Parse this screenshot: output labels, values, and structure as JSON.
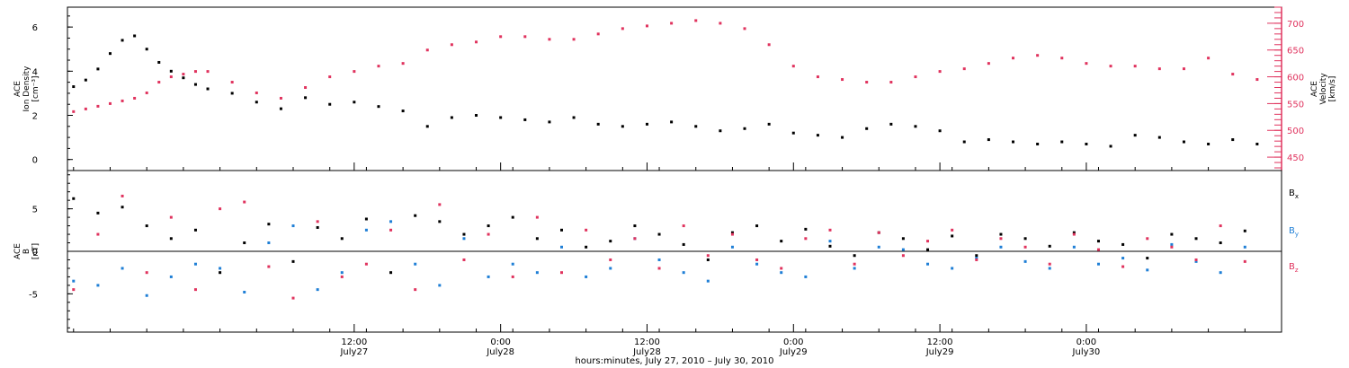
{
  "colors": {
    "axis": "#000000",
    "density": "#000000",
    "velocity": "#e0335e",
    "bx": "#000000",
    "by": "#1f7fd6",
    "bz": "#e0335e"
  },
  "xlabel": "hours:minutes, July 27, 2010 – July 30, 2010",
  "chart_data": [
    {
      "type": "scatter",
      "panel": "top",
      "ylabel_left": [
        "ACE",
        "Ion Density",
        "[cm⁻³]"
      ],
      "ylabel_right": [
        "ACE",
        "Velocity",
        "[km/s]"
      ],
      "x_unit": "hours since July 27, 2010 00:00",
      "xlim": [
        -11.5,
        88
      ],
      "ylim_left": [
        -0.5,
        6.9
      ],
      "ylim_right": [
        425,
        730
      ],
      "yticks_left": [
        "0",
        "2",
        "4",
        "6"
      ],
      "yticks_right": [
        "450",
        "500",
        "550",
        "600",
        "650",
        "700"
      ],
      "series": [
        {
          "axis": "left",
          "color_key": "density",
          "x": [
            -11,
            -10,
            -9,
            -8,
            -7,
            -6,
            -5,
            -4,
            -3,
            -2,
            -1,
            0,
            2,
            4,
            6,
            8,
            10,
            12,
            14,
            16,
            18,
            20,
            22,
            24,
            26,
            28,
            30,
            32,
            34,
            36,
            38,
            40,
            42,
            44,
            46,
            48,
            50,
            52,
            54,
            56,
            58,
            60,
            62,
            64,
            66,
            68,
            70,
            72,
            74,
            76,
            78,
            80,
            82,
            84,
            86
          ],
          "y": [
            3.3,
            3.6,
            4.1,
            4.8,
            5.4,
            5.6,
            5.0,
            4.4,
            4.0,
            3.7,
            3.4,
            3.2,
            3.0,
            2.6,
            2.3,
            2.8,
            2.5,
            2.6,
            2.4,
            2.2,
            1.5,
            1.9,
            2.0,
            1.9,
            1.8,
            1.7,
            1.9,
            1.6,
            1.5,
            1.6,
            1.7,
            1.5,
            1.3,
            1.4,
            1.6,
            1.2,
            1.1,
            1.0,
            1.4,
            1.6,
            1.5,
            1.3,
            0.8,
            0.9,
            0.8,
            0.7,
            0.8,
            0.7,
            0.6,
            1.1,
            1.0,
            0.8,
            0.7,
            0.9,
            0.7
          ]
        },
        {
          "axis": "right",
          "color_key": "velocity",
          "x": [
            -11,
            -10,
            -9,
            -8,
            -7,
            -6,
            -5,
            -4,
            -3,
            -2,
            -1,
            0,
            2,
            4,
            6,
            8,
            10,
            12,
            14,
            16,
            18,
            20,
            22,
            24,
            26,
            28,
            30,
            32,
            34,
            36,
            38,
            40,
            42,
            44,
            46,
            48,
            50,
            52,
            54,
            56,
            58,
            60,
            62,
            64,
            66,
            68,
            70,
            72,
            74,
            76,
            78,
            80,
            82,
            84,
            86
          ],
          "y": [
            535,
            540,
            545,
            550,
            555,
            560,
            570,
            590,
            600,
            605,
            610,
            610,
            590,
            570,
            560,
            580,
            600,
            610,
            620,
            625,
            650,
            660,
            665,
            675,
            675,
            670,
            670,
            680,
            690,
            695,
            700,
            705,
            700,
            690,
            660,
            620,
            600,
            595,
            590,
            590,
            600,
            610,
            615,
            625,
            635,
            640,
            635,
            625,
            620,
            620,
            615,
            615,
            635,
            605,
            595
          ]
        }
      ]
    },
    {
      "type": "scatter",
      "panel": "bottom",
      "ylabel_left": [
        "ACE",
        "B",
        "[nT]"
      ],
      "x_unit": "hours since July 27, 2010 00:00",
      "xlim": [
        -11.5,
        88
      ],
      "ylim": [
        -9.5,
        9.5
      ],
      "yticks": [
        "-5",
        "0",
        "5"
      ],
      "zero_line": true,
      "legend_position": "right",
      "series": [
        {
          "name": "Bx",
          "name_main": "B",
          "name_sub": "x",
          "color_key": "bx",
          "x": [
            -11,
            -9,
            -7,
            -5,
            -3,
            -1,
            1,
            3,
            5,
            7,
            9,
            11,
            13,
            15,
            17,
            19,
            21,
            23,
            25,
            27,
            29,
            31,
            33,
            35,
            37,
            39,
            41,
            43,
            45,
            47,
            49,
            51,
            53,
            55,
            57,
            59,
            61,
            63,
            65,
            67,
            69,
            71,
            73,
            75,
            77,
            79,
            81,
            83,
            85
          ],
          "y": [
            6.2,
            4.5,
            5.2,
            3.0,
            1.5,
            2.5,
            -2.5,
            1.0,
            3.2,
            -1.2,
            2.8,
            1.5,
            3.8,
            -2.5,
            4.2,
            3.5,
            2.0,
            3.0,
            4.0,
            1.5,
            2.5,
            0.5,
            1.2,
            3.0,
            2.0,
            0.8,
            -1.0,
            2.2,
            3.0,
            1.2,
            2.6,
            0.6,
            -0.5,
            2.2,
            1.5,
            0.2,
            1.8,
            -0.5,
            2.0,
            1.5,
            0.6,
            2.2,
            1.2,
            0.8,
            -0.8,
            2.0,
            1.5,
            1.0,
            2.4
          ]
        },
        {
          "name": "By",
          "name_main": "B",
          "name_sub": "y",
          "color_key": "by",
          "x": [
            -11,
            -9,
            -7,
            -5,
            -3,
            -1,
            1,
            3,
            5,
            7,
            9,
            11,
            13,
            15,
            17,
            19,
            21,
            23,
            25,
            27,
            29,
            31,
            33,
            35,
            37,
            39,
            41,
            43,
            45,
            47,
            49,
            51,
            53,
            55,
            57,
            59,
            61,
            63,
            65,
            67,
            69,
            71,
            73,
            75,
            77,
            79,
            81,
            83,
            85
          ],
          "y": [
            -3.5,
            -4.0,
            -2.0,
            -5.2,
            -3.0,
            -1.5,
            -2.0,
            -4.8,
            1.0,
            3.0,
            -4.5,
            -2.5,
            2.5,
            3.5,
            -1.5,
            -4.0,
            1.5,
            -3.0,
            -1.5,
            -2.5,
            0.5,
            -3.0,
            -2.0,
            1.5,
            -1.0,
            -2.5,
            -3.5,
            0.5,
            -1.5,
            -2.5,
            -3.0,
            1.2,
            -2.0,
            0.5,
            0.2,
            -1.5,
            -2.0,
            -0.8,
            0.5,
            -1.2,
            -2.0,
            0.5,
            -1.5,
            -0.8,
            -2.2,
            0.8,
            -1.2,
            -2.5,
            0.5
          ]
        },
        {
          "name": "Bz",
          "name_main": "B",
          "name_sub": "z",
          "color_key": "bz",
          "x": [
            -11,
            -9,
            -7,
            -5,
            -3,
            -1,
            1,
            3,
            5,
            7,
            9,
            11,
            13,
            15,
            17,
            19,
            21,
            23,
            25,
            27,
            29,
            31,
            33,
            35,
            37,
            39,
            41,
            43,
            45,
            47,
            49,
            51,
            53,
            55,
            57,
            59,
            61,
            63,
            65,
            67,
            69,
            71,
            73,
            75,
            77,
            79,
            81,
            83,
            85
          ],
          "y": [
            -4.5,
            2.0,
            6.5,
            -2.5,
            4.0,
            -4.5,
            5.0,
            5.8,
            -1.8,
            -5.5,
            3.5,
            -3.0,
            -1.5,
            2.5,
            -4.5,
            5.5,
            -1.0,
            2.0,
            -3.0,
            4.0,
            -2.5,
            2.5,
            -1.0,
            1.5,
            -2.0,
            3.0,
            -0.5,
            2.0,
            -1.0,
            -2.0,
            1.5,
            2.5,
            -1.5,
            2.2,
            -0.5,
            1.2,
            2.5,
            -1.0,
            1.5,
            0.5,
            -1.5,
            2.0,
            0.2,
            -1.8,
            1.5,
            0.5,
            -1.0,
            3.0,
            -1.2
          ]
        }
      ]
    }
  ],
  "x_axis": {
    "ticks": [
      {
        "hour": 12,
        "top": "12:00",
        "bottom": "July27"
      },
      {
        "hour": 24,
        "top": "0:00",
        "bottom": "July28"
      },
      {
        "hour": 36,
        "top": "12:00",
        "bottom": "July28"
      },
      {
        "hour": 48,
        "top": "0:00",
        "bottom": "July29"
      },
      {
        "hour": 60,
        "top": "12:00",
        "bottom": "July29"
      },
      {
        "hour": 72,
        "top": "0:00",
        "bottom": "July30"
      }
    ]
  }
}
